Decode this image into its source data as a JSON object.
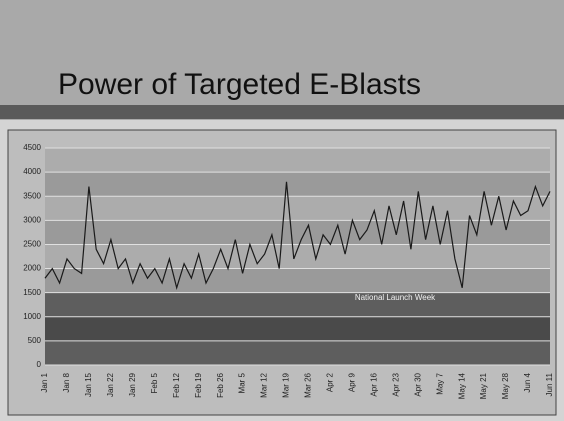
{
  "chart_data": {
    "type": "line",
    "title": "Power of Targeted E-Blasts",
    "annotation": "National Launch Week",
    "categories": [
      "Jan 1",
      null,
      null,
      "Jan 8",
      null,
      null,
      "Jan 15",
      null,
      null,
      "Jan 22",
      null,
      null,
      "Jan 29",
      null,
      null,
      "Feb 5",
      null,
      null,
      "Feb 12",
      null,
      null,
      "Feb 19",
      null,
      null,
      "Feb 26",
      null,
      null,
      "Mar 5",
      null,
      null,
      "Mar 12",
      null,
      null,
      "Mar 19",
      null,
      null,
      "Mar 26",
      null,
      null,
      "Apr 2",
      null,
      null,
      "Apr 9",
      null,
      null,
      "Apr 16",
      null,
      null,
      "Apr 23",
      null,
      null,
      "Apr 30",
      null,
      null,
      "May 7",
      null,
      null,
      "May 14",
      null,
      null,
      "May 21",
      null,
      null,
      "May 28",
      null,
      null,
      "Jun 4",
      null,
      null,
      "Jun 11"
    ],
    "values": [
      1800,
      2000,
      1700,
      2200,
      2000,
      1900,
      3700,
      2400,
      2100,
      2600,
      2000,
      2200,
      1700,
      2100,
      1800,
      2000,
      1700,
      2200,
      1600,
      2100,
      1800,
      2300,
      1700,
      2000,
      2400,
      2000,
      2600,
      1900,
      2500,
      2100,
      2300,
      2700,
      2000,
      3800,
      2200,
      2600,
      2900,
      2200,
      2700,
      2500,
      2900,
      2300,
      3000,
      2600,
      2800,
      3200,
      2500,
      3300,
      2700,
      3400,
      2400,
      3600,
      2600,
      3300,
      2500,
      3200,
      2200,
      1600,
      3100,
      2700,
      3600,
      2900,
      3500,
      2800,
      3400,
      3100,
      3200,
      3700,
      3300,
      3600
    ],
    "color": "#1a1a1a",
    "ylim": [
      0,
      4500
    ],
    "yticks": [
      0,
      500,
      1000,
      1500,
      2000,
      2500,
      3000,
      3500,
      4000,
      4500
    ],
    "grid": true
  }
}
